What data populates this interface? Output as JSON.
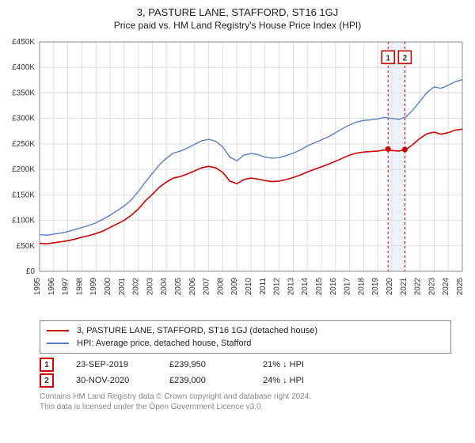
{
  "title_line1": "3, PASTURE LANE, STAFFORD, ST16 1GJ",
  "title_line2": "Price paid vs. HM Land Registry's House Price Index (HPI)",
  "chart": {
    "type": "line",
    "background_color": "#ffffff",
    "plot_background": "#ffffff",
    "grid_color": "#dddddd",
    "axis_color": "#888888",
    "x_axis": {
      "min": 1995,
      "max": 2025,
      "tick_step": 1,
      "labels": [
        "1995",
        "1996",
        "1997",
        "1998",
        "1999",
        "2000",
        "2001",
        "2002",
        "2003",
        "2004",
        "2005",
        "2006",
        "2007",
        "2008",
        "2009",
        "2010",
        "2011",
        "2012",
        "2013",
        "2014",
        "2015",
        "2016",
        "2017",
        "2018",
        "2019",
        "2020",
        "2021",
        "2022",
        "2023",
        "2024",
        "2025"
      ],
      "label_fontsize": 10,
      "label_color": "#333333",
      "label_rotate": -90
    },
    "y_axis": {
      "min": 0,
      "max": 450000,
      "tick_step": 50000,
      "labels": [
        "£0",
        "£50K",
        "£100K",
        "£150K",
        "£200K",
        "£250K",
        "£300K",
        "£350K",
        "£400K",
        "£450K"
      ],
      "label_fontsize": 10,
      "label_color": "#333333"
    },
    "highlight_band": {
      "x_from": 2019.73,
      "x_to": 2020.92,
      "fill": "#eef2fb"
    },
    "marker_vlines": [
      {
        "x": 2019.73,
        "color": "#cc0000",
        "dash": "3,3"
      },
      {
        "x": 2020.92,
        "color": "#cc0000",
        "dash": "3,3"
      }
    ],
    "markers": [
      {
        "label": "1",
        "x": 2019.73,
        "y_box": 420000,
        "border": "#cc0000",
        "point_y": 239950,
        "point_color": "#cc0000"
      },
      {
        "label": "2",
        "x": 2020.92,
        "y_box": 420000,
        "border": "#cc0000",
        "point_y": 239000,
        "point_color": "#cc0000"
      }
    ],
    "series": [
      {
        "name": "price_paid",
        "label": "3, PASTURE LANE, STAFFORD, ST16 1GJ (detached house)",
        "color": "#cc0000",
        "width": 1.6,
        "points": [
          [
            1995,
            55000
          ],
          [
            1995.5,
            54000
          ],
          [
            1996,
            56000
          ],
          [
            1996.5,
            58000
          ],
          [
            1997,
            60000
          ],
          [
            1997.5,
            63000
          ],
          [
            1998,
            67000
          ],
          [
            1998.5,
            70000
          ],
          [
            1999,
            74000
          ],
          [
            1999.5,
            79000
          ],
          [
            2000,
            86000
          ],
          [
            2000.5,
            93000
          ],
          [
            2001,
            100000
          ],
          [
            2001.5,
            110000
          ],
          [
            2002,
            122000
          ],
          [
            2002.5,
            138000
          ],
          [
            2003,
            151000
          ],
          [
            2003.5,
            165000
          ],
          [
            2004,
            175000
          ],
          [
            2004.5,
            183000
          ],
          [
            2005,
            186000
          ],
          [
            2005.5,
            191000
          ],
          [
            2006,
            197000
          ],
          [
            2006.5,
            203000
          ],
          [
            2007,
            206000
          ],
          [
            2007.5,
            203000
          ],
          [
            2008,
            194000
          ],
          [
            2008.5,
            177000
          ],
          [
            2009,
            172000
          ],
          [
            2009.5,
            180000
          ],
          [
            2010,
            183000
          ],
          [
            2010.5,
            181000
          ],
          [
            2011,
            178000
          ],
          [
            2011.5,
            176000
          ],
          [
            2012,
            177000
          ],
          [
            2012.5,
            180000
          ],
          [
            2013,
            184000
          ],
          [
            2013.5,
            189000
          ],
          [
            2014,
            195000
          ],
          [
            2014.5,
            200000
          ],
          [
            2015,
            205000
          ],
          [
            2015.5,
            210000
          ],
          [
            2016,
            216000
          ],
          [
            2016.5,
            222000
          ],
          [
            2017,
            228000
          ],
          [
            2017.5,
            232000
          ],
          [
            2018,
            234000
          ],
          [
            2018.5,
            235000
          ],
          [
            2019,
            236000
          ],
          [
            2019.5,
            238000
          ],
          [
            2020,
            237000
          ],
          [
            2020.5,
            236000
          ],
          [
            2021,
            239000
          ],
          [
            2021.5,
            249000
          ],
          [
            2022,
            261000
          ],
          [
            2022.5,
            270000
          ],
          [
            2023,
            273000
          ],
          [
            2023.5,
            269000
          ],
          [
            2024,
            272000
          ],
          [
            2024.5,
            277000
          ],
          [
            2025,
            279000
          ]
        ]
      },
      {
        "name": "hpi",
        "label": "HPI: Average price, detached house, Stafford",
        "color": "#5b7fc7",
        "width": 1.4,
        "points": [
          [
            1995,
            72000
          ],
          [
            1995.5,
            71000
          ],
          [
            1996,
            73000
          ],
          [
            1996.5,
            75000
          ],
          [
            1997,
            78000
          ],
          [
            1997.5,
            82000
          ],
          [
            1998,
            86000
          ],
          [
            1998.5,
            90000
          ],
          [
            1999,
            95000
          ],
          [
            1999.5,
            102000
          ],
          [
            2000,
            110000
          ],
          [
            2000.5,
            119000
          ],
          [
            2001,
            128000
          ],
          [
            2001.5,
            140000
          ],
          [
            2002,
            156000
          ],
          [
            2002.5,
            175000
          ],
          [
            2003,
            192000
          ],
          [
            2003.5,
            209000
          ],
          [
            2004,
            222000
          ],
          [
            2004.5,
            232000
          ],
          [
            2005,
            236000
          ],
          [
            2005.5,
            242000
          ],
          [
            2006,
            249000
          ],
          [
            2006.5,
            256000
          ],
          [
            2007,
            259000
          ],
          [
            2007.5,
            255000
          ],
          [
            2008,
            244000
          ],
          [
            2008.5,
            224000
          ],
          [
            2009,
            217000
          ],
          [
            2009.5,
            228000
          ],
          [
            2010,
            231000
          ],
          [
            2010.5,
            229000
          ],
          [
            2011,
            224000
          ],
          [
            2011.5,
            222000
          ],
          [
            2012,
            223000
          ],
          [
            2012.5,
            227000
          ],
          [
            2013,
            232000
          ],
          [
            2013.5,
            238000
          ],
          [
            2014,
            246000
          ],
          [
            2014.5,
            252000
          ],
          [
            2015,
            258000
          ],
          [
            2015.5,
            264000
          ],
          [
            2016,
            272000
          ],
          [
            2016.5,
            280000
          ],
          [
            2017,
            287000
          ],
          [
            2017.5,
            293000
          ],
          [
            2018,
            296000
          ],
          [
            2018.5,
            297000
          ],
          [
            2019,
            299000
          ],
          [
            2019.5,
            302000
          ],
          [
            2020,
            300000
          ],
          [
            2020.5,
            298000
          ],
          [
            2021,
            303000
          ],
          [
            2021.5,
            317000
          ],
          [
            2022,
            334000
          ],
          [
            2022.5,
            351000
          ],
          [
            2023,
            362000
          ],
          [
            2023.5,
            359000
          ],
          [
            2024,
            365000
          ],
          [
            2024.5,
            372000
          ],
          [
            2025,
            376000
          ]
        ]
      }
    ]
  },
  "legend": {
    "items": [
      {
        "color": "#cc0000",
        "label": "3, PASTURE LANE, STAFFORD, ST16 1GJ (detached house)"
      },
      {
        "color": "#5b7fc7",
        "label": "HPI: Average price, detached house, Stafford"
      }
    ]
  },
  "sales": [
    {
      "num": "1",
      "border": "#cc0000",
      "date": "23-SEP-2019",
      "price": "£239,950",
      "pct": "21%",
      "arrow": "↓",
      "vs": "HPI"
    },
    {
      "num": "2",
      "border": "#cc0000",
      "date": "30-NOV-2020",
      "price": "£239,000",
      "pct": "24%",
      "arrow": "↓",
      "vs": "HPI"
    }
  ],
  "footer_line1": "Contains HM Land Registry data © Crown copyright and database right 2024.",
  "footer_line2": "This data is licensed under the Open Government Licence v3.0."
}
